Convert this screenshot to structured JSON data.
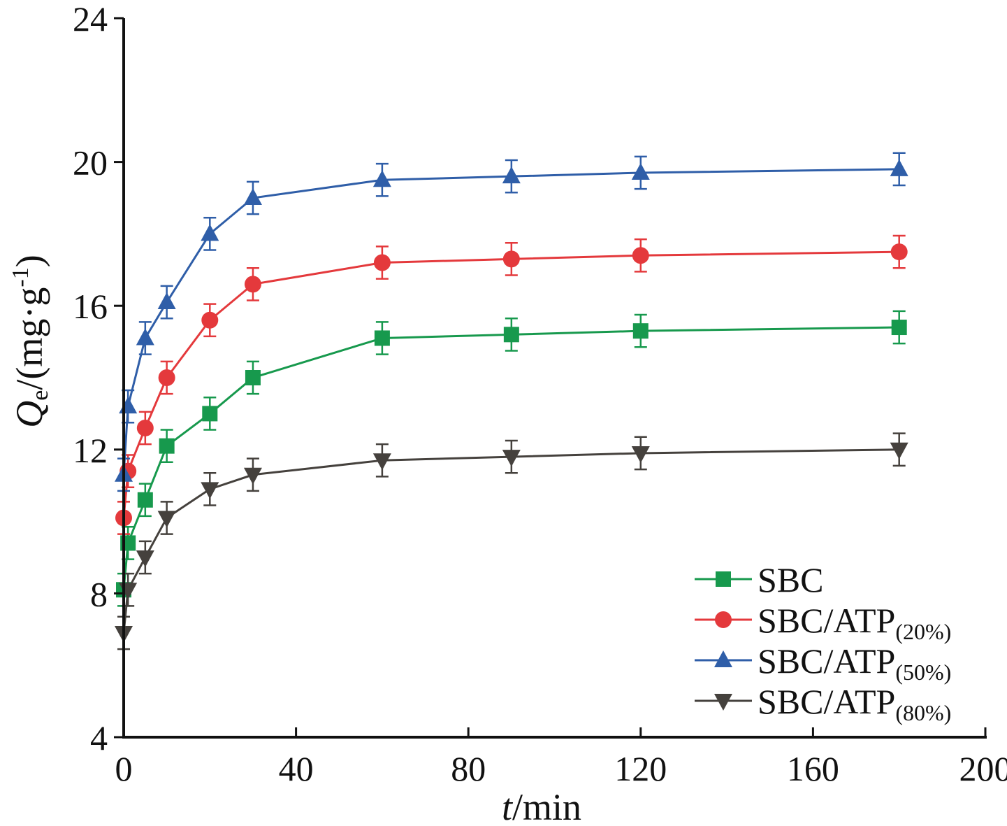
{
  "chart_data": {
    "type": "line",
    "xlabel": {
      "italic": "t",
      "rest": "/min"
    },
    "ylabel": {
      "italic": "Q",
      "sub": "e",
      "rest": "/(mg·g",
      "sup": "-1",
      "close": ")"
    },
    "xlim": [
      0,
      200
    ],
    "ylim": [
      4,
      24
    ],
    "xticks": [
      0,
      40,
      80,
      120,
      160,
      200
    ],
    "yticks": [
      4,
      8,
      12,
      16,
      20,
      24
    ],
    "grid": false,
    "legend_position": "bottom-right",
    "x": [
      0,
      1,
      5,
      10,
      20,
      30,
      60,
      90,
      120,
      180
    ],
    "series": [
      {
        "name": "SBC",
        "name_sub": "",
        "color": "#17994d",
        "marker": "square",
        "values": [
          8.1,
          9.4,
          10.6,
          12.1,
          13.0,
          14.0,
          15.1,
          15.2,
          15.3,
          15.4
        ],
        "error": 0.45
      },
      {
        "name": "SBC/ATP",
        "name_sub": "(20%)",
        "color": "#e4393c",
        "marker": "circle",
        "values": [
          10.1,
          11.4,
          12.6,
          14.0,
          15.6,
          16.6,
          17.2,
          17.3,
          17.4,
          17.5
        ],
        "error": 0.45
      },
      {
        "name": "SBC/ATP",
        "name_sub": "(50%)",
        "color": "#2f5ea8",
        "marker": "triangle-up",
        "values": [
          11.3,
          13.2,
          15.1,
          16.1,
          18.0,
          19.0,
          19.5,
          19.6,
          19.7,
          19.8
        ],
        "error": 0.45
      },
      {
        "name": "SBC/ATP",
        "name_sub": "(80%)",
        "color": "#45413d",
        "marker": "triangle-down",
        "values": [
          6.9,
          8.1,
          9.0,
          10.1,
          10.9,
          11.3,
          11.7,
          11.8,
          11.9,
          12.0
        ],
        "error": 0.45
      }
    ]
  }
}
